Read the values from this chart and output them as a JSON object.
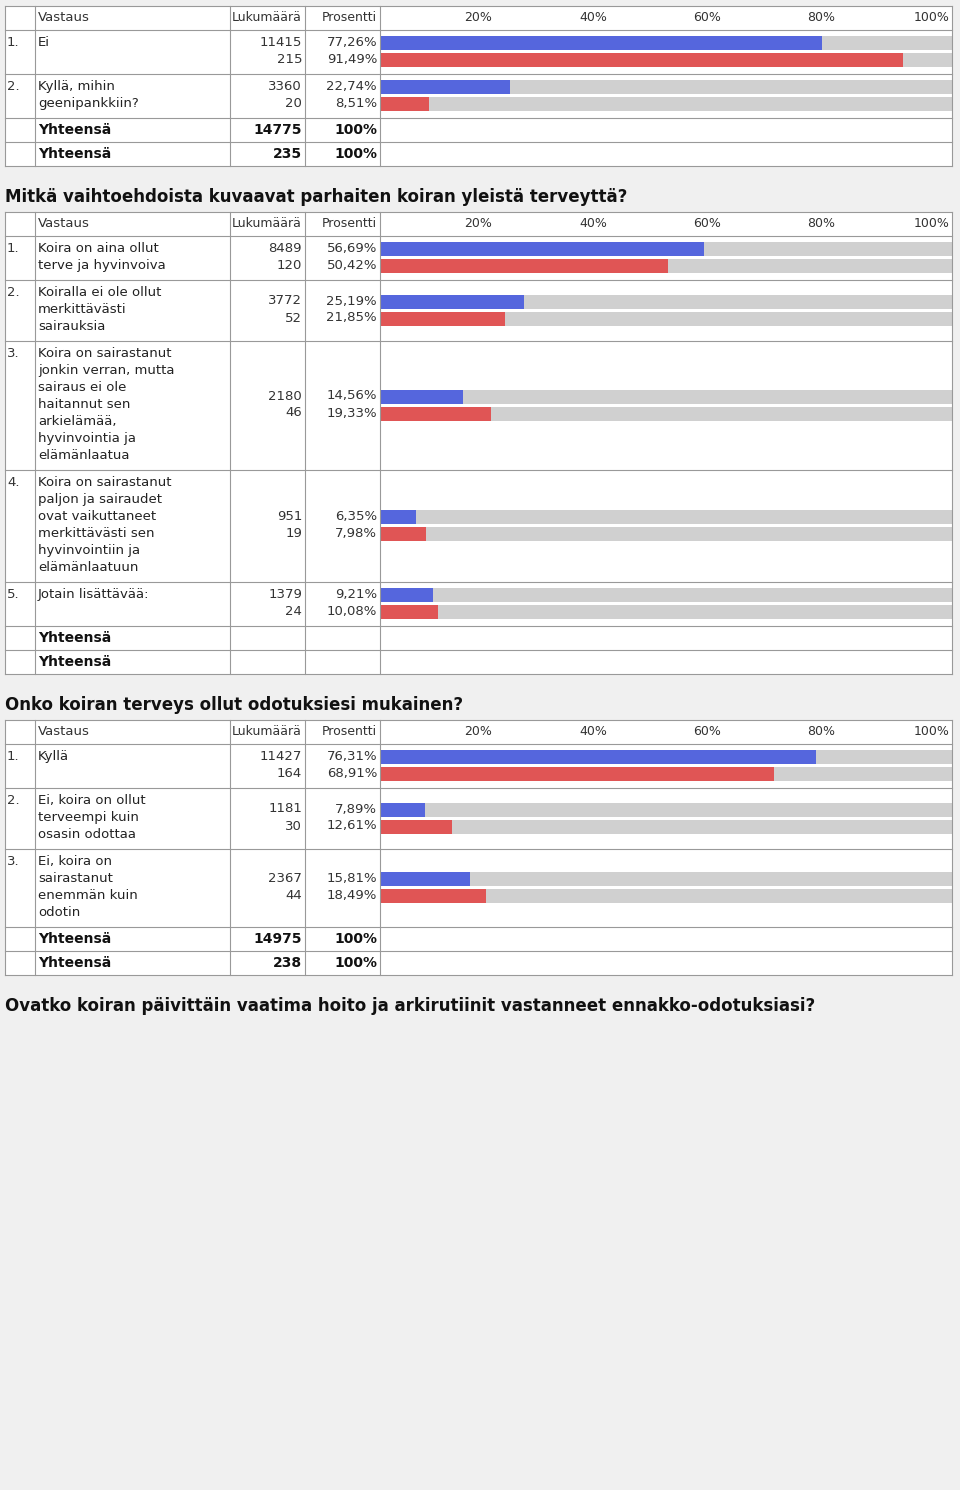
{
  "blue_color": "#5566dd",
  "red_color": "#e05555",
  "gray_bar_bg": "#d0d0d0",
  "border_color": "#999999",
  "section1_rows": [
    {
      "num": "1.",
      "label_lines": [
        "Ei"
      ],
      "values": [
        {
          "count": "11415",
          "pct": "77,26%",
          "pct_num": 77.26,
          "color": "blue"
        },
        {
          "count": "215",
          "pct": "91,49%",
          "pct_num": 91.49,
          "color": "red"
        }
      ]
    },
    {
      "num": "2.",
      "label_lines": [
        "Kyllä, mihin",
        "geenipankkiin?"
      ],
      "values": [
        {
          "count": "3360",
          "pct": "22,74%",
          "pct_num": 22.74,
          "color": "blue"
        },
        {
          "count": "20",
          "pct": "8,51%",
          "pct_num": 8.51,
          "color": "red"
        }
      ]
    }
  ],
  "section1_totals": [
    {
      "label": "Yhteensä",
      "count": "14775",
      "pct": "100%"
    },
    {
      "label": "Yhteensä",
      "count": "235",
      "pct": "100%"
    }
  ],
  "section2_question": "Mitkä vaihtoehdoista kuvaavat parhaiten koiran yleistä terveyttä?",
  "section2_rows": [
    {
      "num": "1.",
      "label_lines": [
        "Koira on aina ollut",
        "terve ja hyvinvoiva"
      ],
      "values": [
        {
          "count": "8489",
          "pct": "56,69%",
          "pct_num": 56.69,
          "color": "blue"
        },
        {
          "count": "120",
          "pct": "50,42%",
          "pct_num": 50.42,
          "color": "red"
        }
      ]
    },
    {
      "num": "2.",
      "label_lines": [
        "Koiralla ei ole ollut",
        "merkittävästi",
        "sairauksia"
      ],
      "values": [
        {
          "count": "3772",
          "pct": "25,19%",
          "pct_num": 25.19,
          "color": "blue"
        },
        {
          "count": "52",
          "pct": "21,85%",
          "pct_num": 21.85,
          "color": "red"
        }
      ]
    },
    {
      "num": "3.",
      "label_lines": [
        "Koira on sairastanut",
        "jonkin verran, mutta",
        "sairaus ei ole",
        "haitannut sen",
        "arkielämää,",
        "hyvinvointia ja",
        "elämänlaatua"
      ],
      "values": [
        {
          "count": "2180",
          "pct": "14,56%",
          "pct_num": 14.56,
          "color": "blue"
        },
        {
          "count": "46",
          "pct": "19,33%",
          "pct_num": 19.33,
          "color": "red"
        }
      ]
    },
    {
      "num": "4.",
      "label_lines": [
        "Koira on sairastanut",
        "paljon ja sairaudet",
        "ovat vaikuttaneet",
        "merkittävästi sen",
        "hyvinvointiin ja",
        "elämänlaatuun"
      ],
      "values": [
        {
          "count": "951",
          "pct": "6,35%",
          "pct_num": 6.35,
          "color": "blue"
        },
        {
          "count": "19",
          "pct": "7,98%",
          "pct_num": 7.98,
          "color": "red"
        }
      ]
    },
    {
      "num": "5.",
      "label_lines": [
        "Jotain lisättävää:"
      ],
      "values": [
        {
          "count": "1379",
          "pct": "9,21%",
          "pct_num": 9.21,
          "color": "blue"
        },
        {
          "count": "24",
          "pct": "10,08%",
          "pct_num": 10.08,
          "color": "red"
        }
      ]
    }
  ],
  "section2_totals": [
    {
      "label": "Yhteensä",
      "count": "",
      "pct": ""
    },
    {
      "label": "Yhteensä",
      "count": "",
      "pct": ""
    }
  ],
  "section3_question": "Onko koiran terveys ollut odotuksiesi mukainen?",
  "section3_rows": [
    {
      "num": "1.",
      "label_lines": [
        "Kyllä"
      ],
      "values": [
        {
          "count": "11427",
          "pct": "76,31%",
          "pct_num": 76.31,
          "color": "blue"
        },
        {
          "count": "164",
          "pct": "68,91%",
          "pct_num": 68.91,
          "color": "red"
        }
      ]
    },
    {
      "num": "2.",
      "label_lines": [
        "Ei, koira on ollut",
        "terveempi kuin",
        "osasin odottaa"
      ],
      "values": [
        {
          "count": "1181",
          "pct": "7,89%",
          "pct_num": 7.89,
          "color": "blue"
        },
        {
          "count": "30",
          "pct": "12,61%",
          "pct_num": 12.61,
          "color": "red"
        }
      ]
    },
    {
      "num": "3.",
      "label_lines": [
        "Ei, koira on",
        "sairastanut",
        "enemmän kuin",
        "odotin"
      ],
      "values": [
        {
          "count": "2367",
          "pct": "15,81%",
          "pct_num": 15.81,
          "color": "blue"
        },
        {
          "count": "44",
          "pct": "18,49%",
          "pct_num": 18.49,
          "color": "red"
        }
      ]
    }
  ],
  "section3_totals": [
    {
      "label": "Yhteensä",
      "count": "14975",
      "pct": "100%"
    },
    {
      "label": "Yhteensä",
      "count": "238",
      "pct": "100%"
    }
  ],
  "section4_question": "Ovatko koiran päivittäin vaatima hoito ja arkirutiinit vastanneet ennakko-odotuksiasi?"
}
